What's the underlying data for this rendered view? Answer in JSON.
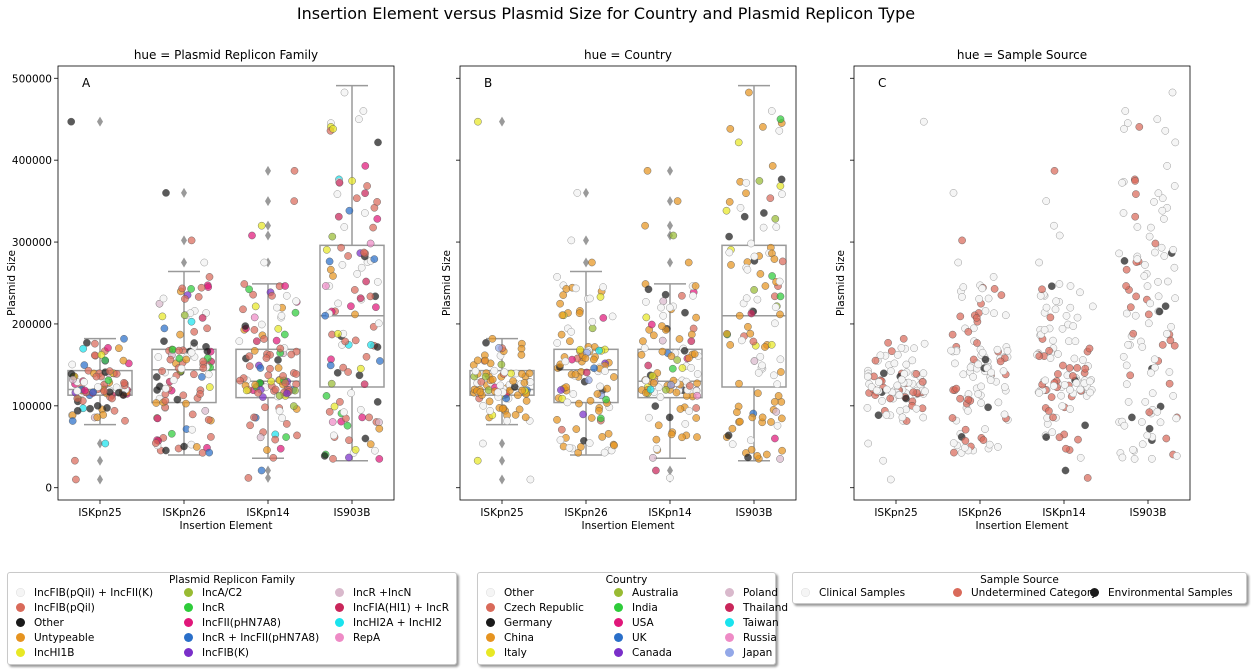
{
  "suptitle": "Insertion Element versus Plasmid Size for Country and Plasmid Replicon Type",
  "colors": {
    "box": "#9a9a9a",
    "points": [
      "#f5f5f5",
      "#d96a5a",
      "#1a1a1a",
      "#e69420",
      "#e8e825",
      "#99bb33",
      "#2ecc3a",
      "#e0177a",
      "#2a6fc9",
      "#7a2fc9",
      "#d9b9cc",
      "#c9265a",
      "#1ae3ee",
      "#ee8bc6",
      "#93a8e8"
    ]
  },
  "chart_data": [
    {
      "type": "box+strip",
      "panel_letter": "A",
      "title": "hue = Plasmid Replicon Family",
      "xlabel": "Insertion Element",
      "ylabel": "Plasmid Size",
      "categories": [
        "ISKpn25",
        "ISKpn26",
        "ISKpn14",
        "IS903B"
      ],
      "yticks": [
        "0",
        "100000",
        "200000",
        "300000",
        "400000",
        "500000"
      ],
      "ylim": [
        -15000,
        515000
      ],
      "grid": false,
      "boxes": [
        {
          "whislo": 77000,
          "q1": 113000,
          "med": 120000,
          "q3": 143000,
          "whishi": 182000,
          "fliers": [
            447000,
            10000,
            33000,
            54000
          ]
        },
        {
          "whislo": 40000,
          "q1": 104000,
          "med": 144000,
          "q3": 169000,
          "whishi": 264000,
          "fliers": [
            360000,
            302000,
            275000
          ]
        },
        {
          "whislo": 36000,
          "q1": 110000,
          "med": 130000,
          "q3": 169000,
          "whishi": 249000,
          "fliers": [
            387000,
            350000,
            320000,
            308000,
            275000,
            12000,
            21000
          ]
        },
        {
          "whislo": 33000,
          "q1": 123000,
          "med": 210000,
          "q3": 296000,
          "whishi": 491000,
          "fliers": []
        }
      ]
    },
    {
      "type": "box+strip",
      "panel_letter": "B",
      "title": "hue = Country",
      "xlabel": "Insertion Element",
      "ylabel": "Plasmid Size",
      "categories": [
        "ISKpn25",
        "ISKpn26",
        "ISKpn14",
        "IS903B"
      ],
      "yticks": [
        "0",
        "100000",
        "200000",
        "300000",
        "400000",
        "500000"
      ],
      "ylim": [
        -15000,
        515000
      ],
      "grid": false,
      "boxes": [
        {
          "whislo": 77000,
          "q1": 113000,
          "med": 120000,
          "q3": 143000,
          "whishi": 182000,
          "fliers": [
            447000,
            10000,
            33000,
            54000
          ]
        },
        {
          "whislo": 40000,
          "q1": 104000,
          "med": 144000,
          "q3": 169000,
          "whishi": 264000,
          "fliers": [
            360000,
            302000,
            275000
          ]
        },
        {
          "whislo": 36000,
          "q1": 110000,
          "med": 130000,
          "q3": 169000,
          "whishi": 249000,
          "fliers": [
            387000,
            350000,
            320000,
            308000,
            275000,
            12000,
            21000
          ]
        },
        {
          "whislo": 33000,
          "q1": 123000,
          "med": 210000,
          "q3": 296000,
          "whishi": 491000,
          "fliers": []
        }
      ]
    },
    {
      "type": "strip",
      "panel_letter": "C",
      "title": "hue = Sample Source",
      "xlabel": "Insertion Element",
      "ylabel": "Plasmid Size",
      "categories": [
        "ISKpn25",
        "ISKpn26",
        "ISKpn14",
        "IS903B"
      ],
      "yticks": [
        "0",
        "100000",
        "200000",
        "300000",
        "400000",
        "500000"
      ],
      "ylim": [
        -15000,
        515000
      ],
      "grid": false
    }
  ],
  "legends": [
    {
      "title": "Plasmid Replicon Family",
      "columns": 3,
      "entries": [
        {
          "label": "IncFIB(pQil) + IncFII(K)",
          "color": "#f5f5f5"
        },
        {
          "label": "IncFIB(pQil)",
          "color": "#d96a5a"
        },
        {
          "label": "Other",
          "color": "#1a1a1a"
        },
        {
          "label": "Untypeable",
          "color": "#e69420"
        },
        {
          "label": "IncHI1B",
          "color": "#e8e825"
        },
        {
          "label": "IncA/C2",
          "color": "#99bb33"
        },
        {
          "label": "IncR",
          "color": "#2ecc3a"
        },
        {
          "label": "IncFII(pHN7A8)",
          "color": "#e0177a"
        },
        {
          "label": "IncR + IncFII(pHN7A8)",
          "color": "#2a6fc9"
        },
        {
          "label": "IncFIB(K)",
          "color": "#7a2fc9"
        },
        {
          "label": "IncR +IncN",
          "color": "#d9b9cc"
        },
        {
          "label": "IncFIA(HI1) + IncR",
          "color": "#c9265a"
        },
        {
          "label": "IncHI2A + IncHI2",
          "color": "#1ae3ee"
        },
        {
          "label": "RepA",
          "color": "#ee8bc6"
        }
      ]
    },
    {
      "title": "Country",
      "columns": 3,
      "entries": [
        {
          "label": "Other",
          "color": "#f5f5f5"
        },
        {
          "label": "Czech Republic",
          "color": "#d96a5a"
        },
        {
          "label": "Germany",
          "color": "#1a1a1a"
        },
        {
          "label": "China",
          "color": "#e69420"
        },
        {
          "label": "Italy",
          "color": "#e8e825"
        },
        {
          "label": "Australia",
          "color": "#99bb33"
        },
        {
          "label": "India",
          "color": "#2ecc3a"
        },
        {
          "label": "USA",
          "color": "#e0177a"
        },
        {
          "label": "UK",
          "color": "#2a6fc9"
        },
        {
          "label": "Canada",
          "color": "#7a2fc9"
        },
        {
          "label": "Poland",
          "color": "#d9b9cc"
        },
        {
          "label": "Thailand",
          "color": "#c9265a"
        },
        {
          "label": "Taiwan",
          "color": "#1ae3ee"
        },
        {
          "label": "Russia",
          "color": "#ee8bc6"
        },
        {
          "label": "Japan",
          "color": "#93a8e8"
        }
      ]
    },
    {
      "title": "Sample Source",
      "columns": 3,
      "entries": [
        {
          "label": "Clinical Samples",
          "color": "#f5f5f5"
        },
        {
          "label": "Undetermined Category",
          "color": "#d96a5a"
        },
        {
          "label": "Environmental Samples",
          "color": "#1a1a1a"
        }
      ]
    }
  ]
}
